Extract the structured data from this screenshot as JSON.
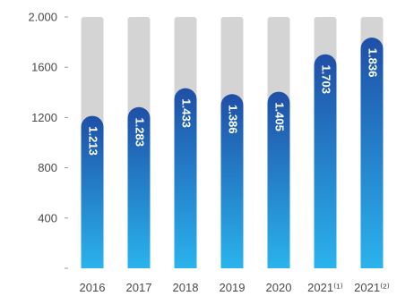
{
  "colors": {
    "track": "#d4d4d4",
    "bar_top": "#1f4fa6",
    "bar_bottom": "#2ab3ec",
    "axis": "#9a9a9a",
    "label_text": "#4a4a4a",
    "data_label": "#ffffff"
  },
  "chart_data": {
    "type": "bar",
    "title": "",
    "xlabel": "",
    "ylabel": "",
    "ylim": [
      0,
      2000
    ],
    "yticks": [
      0,
      400,
      800,
      1200,
      1600,
      2000
    ],
    "ytick_labels": [
      "",
      "400",
      "800",
      "1200",
      "1600",
      "2.000"
    ],
    "grid": false,
    "categories": [
      "2016",
      "2017",
      "2018",
      "2019",
      "2020",
      "2021⁽¹⁾",
      "2021⁽²⁾"
    ],
    "values": [
      1213,
      1283,
      1433,
      1386,
      1405,
      1703,
      1836
    ],
    "value_labels": [
      "1.213",
      "1.283",
      "1.433",
      "1.386",
      "1.405",
      "1.703",
      "1.836"
    ],
    "track_value": 2000
  }
}
